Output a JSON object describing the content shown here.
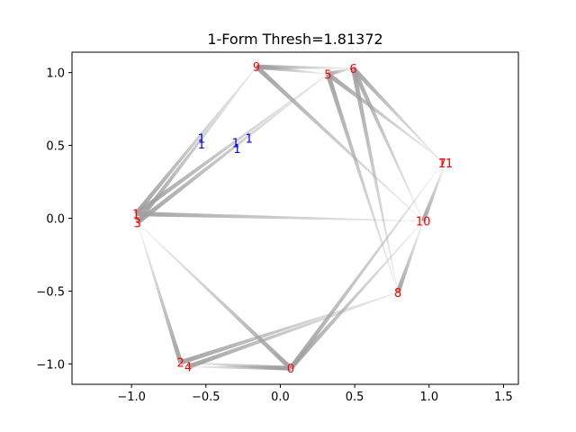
{
  "chart_data": {
    "type": "network",
    "title": "1-Form Thresh=1.81372",
    "xlabel": "",
    "ylabel": "",
    "xlim": [
      -1.4,
      1.6
    ],
    "ylim": [
      -1.14,
      1.14
    ],
    "xticks": [
      -1.0,
      -0.5,
      0.0,
      0.5,
      1.0,
      1.5
    ],
    "xtick_labels": [
      "−1.0",
      "−0.5",
      "0.0",
      "0.5",
      "1.0",
      "1.5"
    ],
    "yticks": [
      1.0,
      0.5,
      0.0,
      -0.5,
      -1.0
    ],
    "ytick_labels": [
      "1.0",
      "0.5",
      "0.0",
      "−0.5",
      "−1.0"
    ],
    "grid": false,
    "node_label_color": "#ff0000",
    "edge_label_color": "#0000ff",
    "edge_color": "#a0a0a0",
    "nodes": [
      {
        "label": "0",
        "x": 0.07,
        "y": -1.03
      },
      {
        "label": "1",
        "x": -0.97,
        "y": 0.03
      },
      {
        "label": "2",
        "x": -0.67,
        "y": -0.99
      },
      {
        "label": "3",
        "x": -0.96,
        "y": -0.03
      },
      {
        "label": "4",
        "x": -0.62,
        "y": -1.02
      },
      {
        "label": "5",
        "x": 0.32,
        "y": 0.99
      },
      {
        "label": "6",
        "x": 0.49,
        "y": 1.03
      },
      {
        "label": "7",
        "x": 1.09,
        "y": 0.38
      },
      {
        "label": "8",
        "x": 0.79,
        "y": -0.51
      },
      {
        "label": "9",
        "x": -0.16,
        "y": 1.04
      },
      {
        "label": "10",
        "x": 0.96,
        "y": -0.02
      },
      {
        "label": "11",
        "x": 1.11,
        "y": 0.38
      }
    ],
    "edges": [
      {
        "source": 0,
        "target": 2
      },
      {
        "source": 0,
        "target": 3
      },
      {
        "source": 0,
        "target": 7
      },
      {
        "source": 0,
        "target": 10
      },
      {
        "source": 0,
        "target": 4
      },
      {
        "source": 2,
        "target": 3
      },
      {
        "source": 2,
        "target": 8
      },
      {
        "source": 4,
        "target": 8
      },
      {
        "source": 1,
        "target": 9
      },
      {
        "source": 1,
        "target": 5
      },
      {
        "source": 3,
        "target": 5
      },
      {
        "source": 3,
        "target": 9
      },
      {
        "source": 1,
        "target": 10
      },
      {
        "source": 9,
        "target": 5
      },
      {
        "source": 9,
        "target": 6
      },
      {
        "source": 9,
        "target": 10
      },
      {
        "source": 5,
        "target": 6
      },
      {
        "source": 5,
        "target": 8
      },
      {
        "source": 5,
        "target": 11
      },
      {
        "source": 6,
        "target": 8
      },
      {
        "source": 6,
        "target": 10
      },
      {
        "source": 6,
        "target": 7
      },
      {
        "source": 8,
        "target": 10
      },
      {
        "source": 10,
        "target": 11
      }
    ],
    "edge_labels": [
      {
        "label": "1",
        "x": -0.53,
        "y": 0.55
      },
      {
        "label": "1",
        "x": -0.53,
        "y": 0.51
      },
      {
        "label": "1",
        "x": -0.3,
        "y": 0.52
      },
      {
        "label": "1",
        "x": -0.29,
        "y": 0.48
      },
      {
        "label": "1",
        "x": -0.21,
        "y": 0.55
      }
    ]
  }
}
